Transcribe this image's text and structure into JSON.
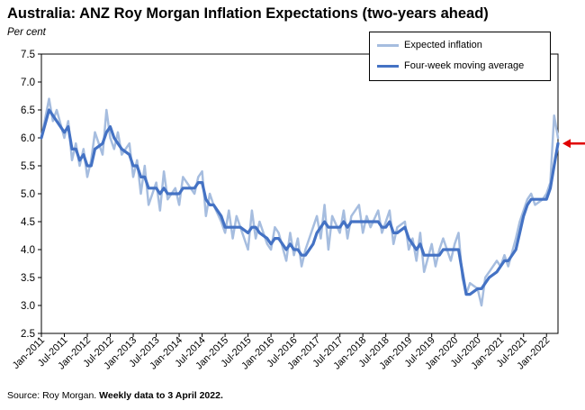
{
  "chart_data": {
    "type": "line",
    "title": "Australia: ANZ Roy Morgan Inflation Expectations (two-years ahead)",
    "ylabel": "Per cent",
    "ylim": [
      2.5,
      7.5
    ],
    "yticks": [
      "2.5",
      "3.0",
      "3.5",
      "4.0",
      "4.5",
      "5.0",
      "5.5",
      "6.0",
      "6.5",
      "7.0",
      "7.5"
    ],
    "xticks": [
      "Jan-2011",
      "Jul-2011",
      "Jan-2012",
      "Jul-2012",
      "Jan-2013",
      "Jul-2013",
      "Jan-2014",
      "Jul-2014",
      "Jan-2015",
      "Jul-2015",
      "Jan-2016",
      "Jul-2016",
      "Jan-2017",
      "Jul-2017",
      "Jan-2018",
      "Jul-2018",
      "Jan-2019",
      "Jul-2019",
      "Jan-2020",
      "Jul-2020",
      "Jan-2021",
      "Jul-2021",
      "Jan-2022"
    ],
    "xlim": [
      "Jan-2011",
      "Apr-2022"
    ],
    "legend_position": "top-right",
    "series": [
      {
        "name": "Expected inflation",
        "color": "#a6bddf",
        "x": [
          "Jan-2011",
          "Mar-2011",
          "Apr-2011",
          "May-2011",
          "Jul-2011",
          "Aug-2011",
          "Sep-2011",
          "Oct-2011",
          "Nov-2011",
          "Dec-2011",
          "Jan-2012",
          "Feb-2012",
          "Mar-2012",
          "May-2012",
          "Jun-2012",
          "Jul-2012",
          "Aug-2012",
          "Sep-2012",
          "Oct-2012",
          "Dec-2012",
          "Jan-2013",
          "Feb-2013",
          "Mar-2013",
          "Apr-2013",
          "May-2013",
          "Jul-2013",
          "Aug-2013",
          "Sep-2013",
          "Oct-2013",
          "Dec-2013",
          "Jan-2014",
          "Feb-2014",
          "Mar-2014",
          "May-2014",
          "Jun-2014",
          "Jul-2014",
          "Aug-2014",
          "Sep-2014",
          "Oct-2014",
          "Dec-2014",
          "Jan-2015",
          "Feb-2015",
          "Mar-2015",
          "Apr-2015",
          "May-2015",
          "Jul-2015",
          "Aug-2015",
          "Sep-2015",
          "Oct-2015",
          "Dec-2015",
          "Jan-2016",
          "Feb-2016",
          "Mar-2016",
          "May-2016",
          "Jun-2016",
          "Jul-2016",
          "Aug-2016",
          "Sep-2016",
          "Oct-2016",
          "Dec-2016",
          "Jan-2017",
          "Feb-2017",
          "Mar-2017",
          "Apr-2017",
          "May-2017",
          "Jul-2017",
          "Aug-2017",
          "Sep-2017",
          "Oct-2017",
          "Dec-2017",
          "Jan-2018",
          "Feb-2018",
          "Mar-2018",
          "May-2018",
          "Jun-2018",
          "Jul-2018",
          "Aug-2018",
          "Sep-2018",
          "Oct-2018",
          "Dec-2018",
          "Jan-2019",
          "Feb-2019",
          "Mar-2019",
          "Apr-2019",
          "May-2019",
          "Jul-2019",
          "Aug-2019",
          "Sep-2019",
          "Oct-2019",
          "Dec-2019",
          "Jan-2020",
          "Feb-2020",
          "Mar-2020",
          "Apr-2020",
          "May-2020",
          "Jul-2020",
          "Aug-2020",
          "Sep-2020",
          "Oct-2020",
          "Dec-2020",
          "Jan-2021",
          "Feb-2021",
          "Mar-2021",
          "May-2021",
          "Jun-2021",
          "Jul-2021",
          "Aug-2021",
          "Sep-2021",
          "Oct-2021",
          "Dec-2021",
          "Jan-2022",
          "Feb-2022",
          "Mar-2022",
          "Apr-2022"
        ],
        "values": [
          6.0,
          6.7,
          6.3,
          6.5,
          6.0,
          6.3,
          5.6,
          5.9,
          5.5,
          5.8,
          5.3,
          5.6,
          6.1,
          5.7,
          6.5,
          6.0,
          5.8,
          6.1,
          5.7,
          5.9,
          5.3,
          5.6,
          5.0,
          5.5,
          4.8,
          5.2,
          4.7,
          5.4,
          4.9,
          5.1,
          4.8,
          5.3,
          5.2,
          5.0,
          5.3,
          5.4,
          4.6,
          5.0,
          4.8,
          4.5,
          4.3,
          4.7,
          4.2,
          4.6,
          4.4,
          4.0,
          4.7,
          4.2,
          4.5,
          4.1,
          4.0,
          4.4,
          4.3,
          3.8,
          4.3,
          3.9,
          4.2,
          3.7,
          4.0,
          4.4,
          4.6,
          4.2,
          4.8,
          4.0,
          4.6,
          4.3,
          4.7,
          4.2,
          4.6,
          4.8,
          4.3,
          4.6,
          4.4,
          4.7,
          4.3,
          4.5,
          4.7,
          4.1,
          4.4,
          4.5,
          4.0,
          4.2,
          3.8,
          4.3,
          3.6,
          4.1,
          3.7,
          4.0,
          4.2,
          3.8,
          4.1,
          4.3,
          3.5,
          3.2,
          3.4,
          3.3,
          3.0,
          3.5,
          3.6,
          3.8,
          3.7,
          3.9,
          3.7,
          4.2,
          4.5,
          4.7,
          4.9,
          5.0,
          4.8,
          4.9,
          5.0,
          5.2,
          6.4,
          6.0
        ]
      },
      {
        "name": "Four-week moving average",
        "color": "#4472c4",
        "x": [
          "Jan-2011",
          "Mar-2011",
          "Apr-2011",
          "May-2011",
          "Jul-2011",
          "Aug-2011",
          "Sep-2011",
          "Oct-2011",
          "Nov-2011",
          "Dec-2011",
          "Jan-2012",
          "Feb-2012",
          "Mar-2012",
          "May-2012",
          "Jun-2012",
          "Jul-2012",
          "Aug-2012",
          "Sep-2012",
          "Oct-2012",
          "Dec-2012",
          "Jan-2013",
          "Feb-2013",
          "Mar-2013",
          "Apr-2013",
          "May-2013",
          "Jul-2013",
          "Aug-2013",
          "Sep-2013",
          "Oct-2013",
          "Dec-2013",
          "Jan-2014",
          "Feb-2014",
          "Mar-2014",
          "May-2014",
          "Jun-2014",
          "Jul-2014",
          "Aug-2014",
          "Sep-2014",
          "Oct-2014",
          "Dec-2014",
          "Jan-2015",
          "Feb-2015",
          "Mar-2015",
          "Apr-2015",
          "May-2015",
          "Jul-2015",
          "Aug-2015",
          "Sep-2015",
          "Oct-2015",
          "Dec-2015",
          "Jan-2016",
          "Feb-2016",
          "Mar-2016",
          "May-2016",
          "Jun-2016",
          "Jul-2016",
          "Aug-2016",
          "Sep-2016",
          "Oct-2016",
          "Dec-2016",
          "Jan-2017",
          "Feb-2017",
          "Mar-2017",
          "Apr-2017",
          "May-2017",
          "Jul-2017",
          "Aug-2017",
          "Sep-2017",
          "Oct-2017",
          "Dec-2017",
          "Jan-2018",
          "Feb-2018",
          "Mar-2018",
          "May-2018",
          "Jun-2018",
          "Jul-2018",
          "Aug-2018",
          "Sep-2018",
          "Oct-2018",
          "Dec-2018",
          "Jan-2019",
          "Feb-2019",
          "Mar-2019",
          "Apr-2019",
          "May-2019",
          "Jul-2019",
          "Aug-2019",
          "Sep-2019",
          "Oct-2019",
          "Dec-2019",
          "Jan-2020",
          "Feb-2020",
          "Mar-2020",
          "Apr-2020",
          "May-2020",
          "Jul-2020",
          "Aug-2020",
          "Sep-2020",
          "Oct-2020",
          "Dec-2020",
          "Jan-2021",
          "Feb-2021",
          "Mar-2021",
          "May-2021",
          "Jun-2021",
          "Jul-2021",
          "Aug-2021",
          "Sep-2021",
          "Oct-2021",
          "Dec-2021",
          "Jan-2022",
          "Feb-2022",
          "Mar-2022",
          "Apr-2022"
        ],
        "values": [
          6.0,
          6.5,
          6.4,
          6.3,
          6.1,
          6.2,
          5.8,
          5.8,
          5.6,
          5.7,
          5.5,
          5.5,
          5.8,
          5.9,
          6.1,
          6.2,
          6.0,
          5.9,
          5.8,
          5.7,
          5.5,
          5.5,
          5.3,
          5.3,
          5.1,
          5.1,
          5.0,
          5.1,
          5.0,
          5.0,
          5.0,
          5.1,
          5.1,
          5.1,
          5.2,
          5.2,
          4.9,
          4.8,
          4.8,
          4.6,
          4.4,
          4.4,
          4.4,
          4.4,
          4.4,
          4.3,
          4.4,
          4.4,
          4.3,
          4.2,
          4.1,
          4.2,
          4.2,
          4.0,
          4.1,
          4.0,
          4.0,
          3.9,
          3.9,
          4.1,
          4.3,
          4.4,
          4.5,
          4.4,
          4.4,
          4.4,
          4.5,
          4.4,
          4.5,
          4.5,
          4.5,
          4.5,
          4.5,
          4.5,
          4.4,
          4.4,
          4.5,
          4.3,
          4.3,
          4.4,
          4.2,
          4.1,
          4.0,
          4.1,
          3.9,
          3.9,
          3.9,
          3.9,
          4.0,
          4.0,
          4.0,
          4.0,
          3.6,
          3.2,
          3.2,
          3.3,
          3.3,
          3.4,
          3.5,
          3.6,
          3.7,
          3.8,
          3.8,
          4.0,
          4.3,
          4.6,
          4.8,
          4.9,
          4.9,
          4.9,
          4.9,
          5.1,
          5.5,
          5.9
        ]
      }
    ],
    "annotations": [
      {
        "type": "arrow",
        "color": "#e00000",
        "points_to": "latest value"
      }
    ],
    "source": "Source: Roy Morgan.",
    "source_bold": "Weekly data to 3 April 2022."
  }
}
